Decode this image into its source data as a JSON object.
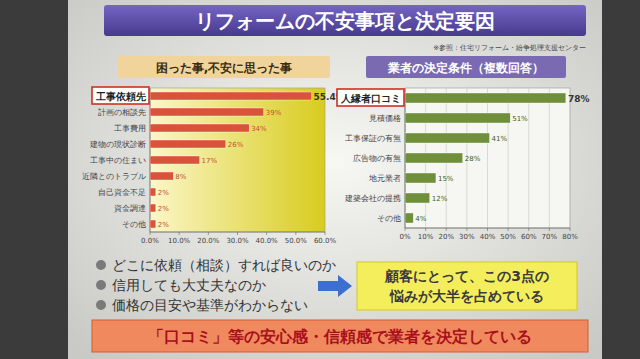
{
  "slide": {
    "title": "リフォームの不安事項と決定要因",
    "source": "※参照：住宅リフォーム・紛争処理支援センター",
    "bullets": [
      "どこに依頼（相談）すれば良いのか",
      "信用しても大丈夫なのか",
      "価格の目安や基準がわからない"
    ],
    "callout": [
      "顧客にとって、この3点の",
      "悩みが大半を占めている"
    ],
    "conclusion": "「口コミ」等の安心感・信頼感で業者を決定している"
  },
  "chart_data": [
    {
      "type": "bar",
      "orientation": "horizontal",
      "title": "困った事,不安に思った事",
      "categories": [
        "工事依頼先",
        "計画の相談先",
        "工事費用",
        "建物の現状診断",
        "工事中の住まい",
        "近隣とのトラブル",
        "自己資金不足",
        "資金調達",
        "その他"
      ],
      "values": [
        55.4,
        39,
        34,
        26,
        17,
        8,
        2,
        2,
        2
      ],
      "value_labels": [
        "55.4%",
        "39%",
        "34%",
        "26%",
        "17%",
        "8%",
        "2%",
        "2%",
        "2%"
      ],
      "color": "#d9533a",
      "data_labels": true,
      "grid": false,
      "xlim": [
        0,
        60
      ],
      "xticks": [
        {
          "value": 0,
          "label": "0.0%"
        },
        {
          "value": 10,
          "label": "10.0%"
        },
        {
          "value": 20,
          "label": "20.0%"
        },
        {
          "value": 30,
          "label": "30.0%"
        },
        {
          "value": 40,
          "label": "40.0%"
        },
        {
          "value": 50,
          "label": "50.0%"
        },
        {
          "value": 60,
          "label": "60.0%"
        }
      ]
    },
    {
      "type": "bar",
      "orientation": "horizontal",
      "title": "業者の決定条件（複数回答）",
      "categories": [
        "人縁者口コミ",
        "見積価格",
        "工事保証の有無",
        "広告物の有無",
        "地元業者",
        "建築会社の提携",
        "その他"
      ],
      "values": [
        78,
        51,
        41,
        28,
        15,
        12,
        4
      ],
      "value_labels": [
        "78%",
        "51%",
        "41%",
        "28%",
        "15%",
        "12%",
        "4%"
      ],
      "color": "#6f8f3a",
      "data_labels": true,
      "grid": true,
      "xlim": [
        0,
        80
      ],
      "xticks": [
        {
          "value": 0,
          "label": "0%"
        },
        {
          "value": 10,
          "label": "10%"
        },
        {
          "value": 20,
          "label": "20%"
        },
        {
          "value": 30,
          "label": "30%"
        },
        {
          "value": 40,
          "label": "40%"
        },
        {
          "value": 50,
          "label": "50%"
        },
        {
          "value": 60,
          "label": "60%"
        },
        {
          "value": 70,
          "label": "70%"
        },
        {
          "value": 80,
          "label": "80%"
        }
      ]
    }
  ]
}
